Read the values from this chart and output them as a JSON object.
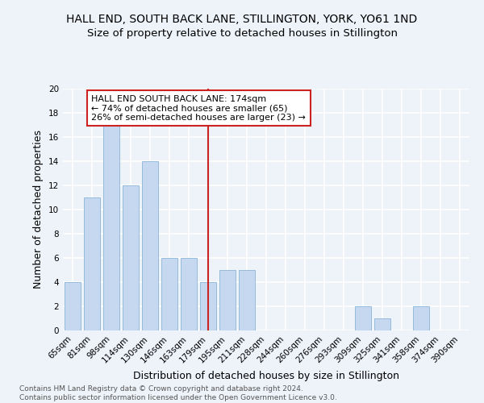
{
  "title": "HALL END, SOUTH BACK LANE, STILLINGTON, YORK, YO61 1ND",
  "subtitle": "Size of property relative to detached houses in Stillington",
  "xlabel": "Distribution of detached houses by size in Stillington",
  "ylabel": "Number of detached properties",
  "categories": [
    "65sqm",
    "81sqm",
    "98sqm",
    "114sqm",
    "130sqm",
    "146sqm",
    "163sqm",
    "179sqm",
    "195sqm",
    "211sqm",
    "228sqm",
    "244sqm",
    "260sqm",
    "276sqm",
    "293sqm",
    "309sqm",
    "325sqm",
    "341sqm",
    "358sqm",
    "374sqm",
    "390sqm"
  ],
  "values": [
    4,
    11,
    17,
    12,
    14,
    6,
    6,
    4,
    5,
    5,
    0,
    0,
    0,
    0,
    0,
    2,
    1,
    0,
    2,
    0,
    0
  ],
  "bar_color": "#c5d8f0",
  "bar_edge_color": "#8ab4d8",
  "vline_x": 7,
  "vline_color": "#cc2222",
  "annotation_text": "HALL END SOUTH BACK LANE: 174sqm\n← 74% of detached houses are smaller (65)\n26% of semi-detached houses are larger (23) →",
  "annotation_box_facecolor": "#ffffff",
  "annotation_box_edgecolor": "#cc2222",
  "ylim": [
    0,
    20
  ],
  "yticks": [
    0,
    2,
    4,
    6,
    8,
    10,
    12,
    14,
    16,
    18,
    20
  ],
  "footer_text": "Contains HM Land Registry data © Crown copyright and database right 2024.\nContains public sector information licensed under the Open Government Licence v3.0.",
  "background_color": "#eef2f9",
  "grid_color": "#ffffff",
  "title_fontsize": 10,
  "subtitle_fontsize": 9.5,
  "tick_fontsize": 7.5,
  "ylabel_fontsize": 9,
  "xlabel_fontsize": 9,
  "footer_fontsize": 6.5,
  "annot_fontsize": 8
}
